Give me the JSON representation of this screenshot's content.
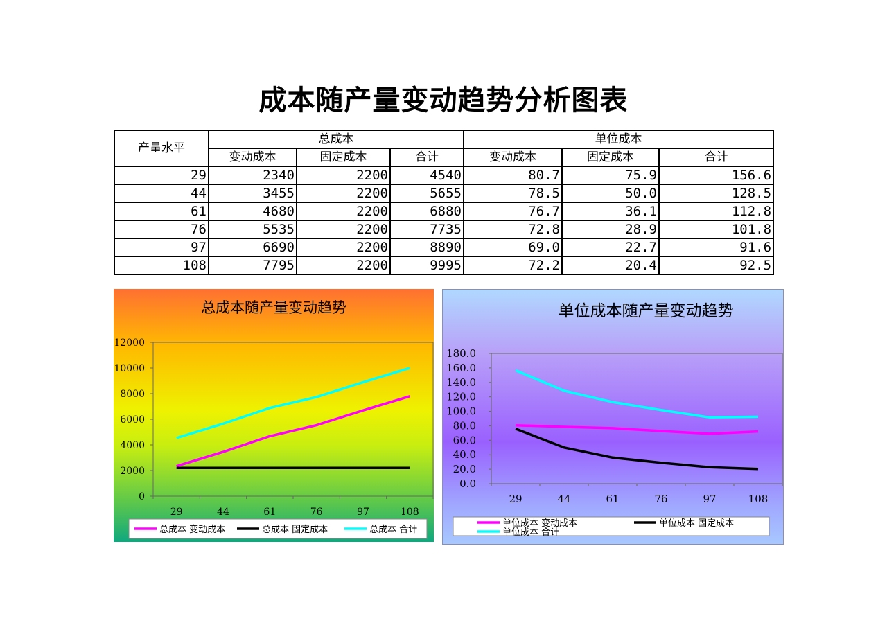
{
  "page_title": "成本随产量变动趋势分析图表",
  "table": {
    "col_level": "产量水平",
    "group_total": "总成本",
    "group_unit": "单位成本",
    "sub_headers": [
      "变动成本",
      "固定成本",
      "合计",
      "变动成本",
      "固定成本",
      "合计"
    ],
    "rows": [
      [
        "29",
        "2340",
        "2200",
        "4540",
        "80.7",
        "75.9",
        "156.6"
      ],
      [
        "44",
        "3455",
        "2200",
        "5655",
        "78.5",
        "50.0",
        "128.5"
      ],
      [
        "61",
        "4680",
        "2200",
        "6880",
        "76.7",
        "36.1",
        "112.8"
      ],
      [
        "76",
        "5535",
        "2200",
        "7735",
        "72.8",
        "28.9",
        "101.8"
      ],
      [
        "97",
        "6690",
        "2200",
        "8890",
        "69.0",
        "22.7",
        "91.6"
      ],
      [
        "108",
        "7795",
        "2200",
        "9995",
        "72.2",
        "20.4",
        "92.5"
      ]
    ]
  },
  "chart_data": [
    {
      "type": "line",
      "title": "总成本随产量变动趋势",
      "categories": [
        "29",
        "44",
        "61",
        "76",
        "97",
        "108"
      ],
      "ylim": [
        0,
        12000
      ],
      "yticks": [
        "0",
        "2000",
        "4000",
        "6000",
        "8000",
        "10000",
        "12000"
      ],
      "grid": false,
      "legend_position": "bottom",
      "series": [
        {
          "name": "总成本 变动成本",
          "color": "#ff00ff",
          "values": [
            2340,
            3455,
            4680,
            5535,
            6690,
            7795
          ]
        },
        {
          "name": "总成本 固定成本",
          "color": "#000000",
          "values": [
            2200,
            2200,
            2200,
            2200,
            2200,
            2200
          ]
        },
        {
          "name": "总成本 合计",
          "color": "#00ffff",
          "values": [
            4540,
            5655,
            6880,
            7735,
            8890,
            9995
          ]
        }
      ]
    },
    {
      "type": "line",
      "title": "单位成本随产量变动趋势",
      "categories": [
        "29",
        "44",
        "61",
        "76",
        "97",
        "108"
      ],
      "ylim": [
        0,
        180
      ],
      "yticks": [
        "0.0",
        "20.0",
        "40.0",
        "60.0",
        "80.0",
        "100.0",
        "120.0",
        "140.0",
        "160.0",
        "180.0"
      ],
      "grid": false,
      "legend_position": "bottom",
      "series": [
        {
          "name": "单位成本 变动成本",
          "color": "#ff00ff",
          "values": [
            80.7,
            78.5,
            76.7,
            72.8,
            69.0,
            72.2
          ]
        },
        {
          "name": "单位成本 固定成本",
          "color": "#000000",
          "values": [
            75.9,
            50.0,
            36.1,
            28.9,
            22.7,
            20.4
          ]
        },
        {
          "name": "单位成本 合计",
          "color": "#00ffff",
          "values": [
            156.6,
            128.5,
            112.8,
            101.8,
            91.6,
            92.5
          ]
        }
      ]
    }
  ]
}
